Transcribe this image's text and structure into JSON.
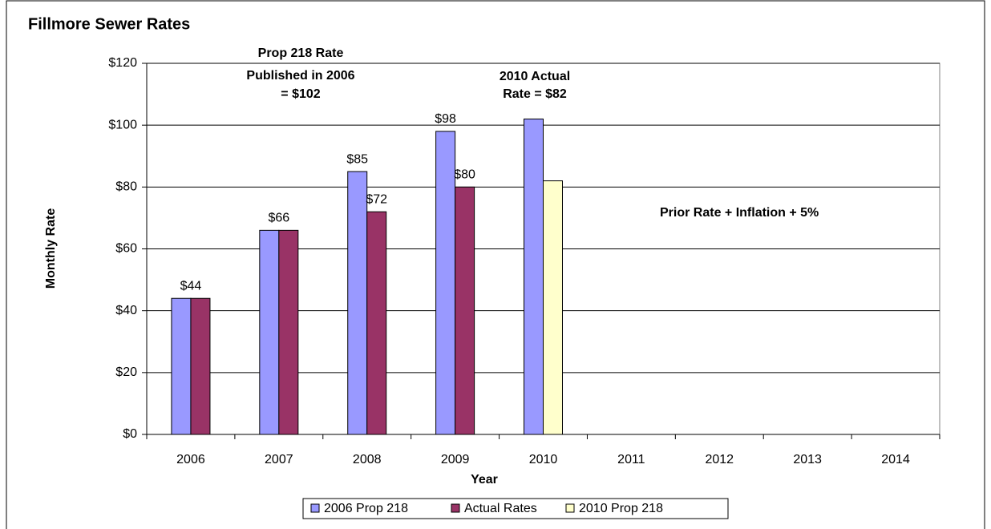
{
  "chart_data": {
    "type": "bar",
    "title": "Fillmore Sewer Rates",
    "x_label": "Year",
    "y_label": "Monthly Rate",
    "categories": [
      "2006",
      "2007",
      "2008",
      "2009",
      "2010",
      "2011",
      "2012",
      "2013",
      "2014"
    ],
    "series": [
      {
        "name": "2006 Prop 218",
        "color": "#9999ff",
        "values": [
          44,
          66,
          85,
          98,
          102,
          null,
          null,
          null,
          null
        ],
        "value_labels": [
          "$44",
          "$66",
          "$85",
          "$98",
          null,
          null,
          null,
          null,
          null
        ]
      },
      {
        "name": "Actual Rates",
        "color": "#993366",
        "values": [
          44,
          66,
          72,
          80,
          null,
          null,
          null,
          null,
          null
        ],
        "value_labels": [
          null,
          null,
          "$72",
          "$80",
          null,
          null,
          null,
          null,
          null
        ]
      },
      {
        "name": "2010 Prop 218",
        "color": "#ffffcc",
        "values": [
          null,
          null,
          null,
          null,
          82,
          null,
          null,
          null,
          null
        ]
      }
    ],
    "ylim": [
      0,
      120
    ],
    "yticks": [
      {
        "value": 0,
        "label": "$0"
      },
      {
        "value": 20,
        "label": "$20"
      },
      {
        "value": 40,
        "label": "$40"
      },
      {
        "value": 60,
        "label": "$60"
      },
      {
        "value": 80,
        "label": "$80"
      },
      {
        "value": 100,
        "label": "$100"
      },
      {
        "value": 120,
        "label": "$120"
      }
    ],
    "grid": true,
    "legend": "bottom",
    "annotations": [
      {
        "lines": [
          "Prop 218 Rate",
          "Published in 2006",
          "= $102"
        ]
      },
      {
        "lines": [
          "2010 Actual",
          "Rate = $82"
        ]
      },
      {
        "lines": [
          "Prior Rate + Inflation + 5%"
        ]
      }
    ]
  }
}
